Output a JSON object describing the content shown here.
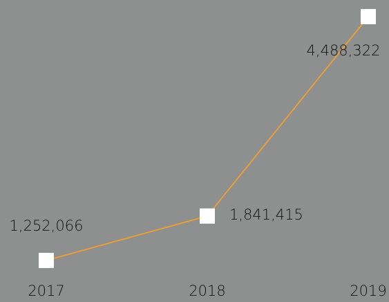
{
  "chart_data": {
    "type": "line",
    "categories": [
      "2017",
      "2018",
      "2019"
    ],
    "series": [
      {
        "color": "#f0a030",
        "values": [
          1252066,
          1841415,
          4488322
        ],
        "value_labels": [
          "1,252,066",
          "1,841,415",
          "4,488,322"
        ]
      }
    ]
  }
}
